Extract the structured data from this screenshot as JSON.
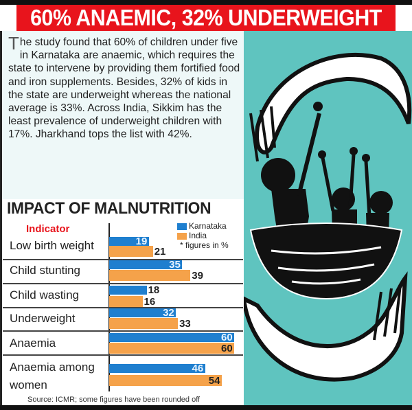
{
  "headline": "60% ANAEMIC, 32% UNDERWEIGHT",
  "body": {
    "dropcap": "T",
    "text": "he study found that 60% of children under five in Karnataka are anaemic, which requires the state to intervene by providing them fortified food and iron supplements. Besides, 32% of kids in the state are underweight whereas the national average is 33%. Across India, Sikkim has the least prevalence of underweight children with 17%. Jharkhand tops the list with 42%."
  },
  "colors": {
    "karnataka": "#1f7fcf",
    "india": "#f5a24a",
    "header": "#e8141c",
    "illustration_bg": "#5fc4bf"
  },
  "chart_data": {
    "type": "bar",
    "orientation": "horizontal",
    "title": "IMPACT OF MALNUTRITION",
    "category_header": "Indicator",
    "categories": [
      "Low birth weight",
      "Child stunting",
      "Child wasting",
      "Underweight",
      "Anaemia",
      "Anaemia among women"
    ],
    "series": [
      {
        "name": "Karnataka",
        "values": [
          19,
          35,
          18,
          32,
          60,
          46
        ]
      },
      {
        "name": "India",
        "values": [
          21,
          39,
          16,
          33,
          60,
          54
        ]
      }
    ],
    "note": "* figures in %",
    "source": "Source: ICMR; some figures have been rounded off",
    "xlim": [
      0,
      60
    ]
  }
}
